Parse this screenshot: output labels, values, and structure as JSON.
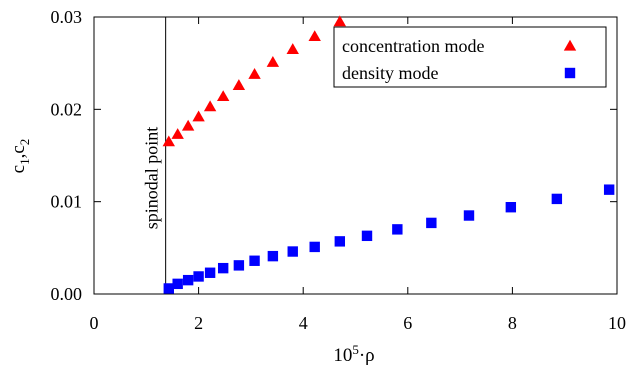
{
  "chart_data": {
    "type": "scatter",
    "xlabel": {
      "base": "10",
      "sup": "5",
      "tail": "·ρ"
    },
    "ylabel": {
      "part1": "c",
      "sub1": "1",
      "comma": ",",
      "part2": "c",
      "sub2": "2"
    },
    "xlim": [
      0,
      10
    ],
    "ylim": [
      0,
      0.03
    ],
    "x_ticks": [
      0,
      2,
      4,
      6,
      8,
      10
    ],
    "x_tick_labels": [
      "0",
      "2",
      "4",
      "6",
      "8",
      "10"
    ],
    "y_ticks": [
      0,
      0.01,
      0.02,
      0.03
    ],
    "y_tick_labels": [
      "0.00",
      "0.01",
      "0.02",
      "0.03"
    ],
    "grid": false,
    "legend_position": "top-right",
    "annotation": {
      "text": "spinodal point",
      "x": 1.37
    },
    "series": [
      {
        "name": "concentration mode",
        "marker": "triangle",
        "color": "#ff0000",
        "points": [
          [
            1.43,
            0.0165
          ],
          [
            1.6,
            0.0173
          ],
          [
            1.8,
            0.0182
          ],
          [
            2.0,
            0.0192
          ],
          [
            2.22,
            0.0203
          ],
          [
            2.47,
            0.0214
          ],
          [
            2.77,
            0.0226
          ],
          [
            3.07,
            0.0238
          ],
          [
            3.42,
            0.0251
          ],
          [
            3.8,
            0.0265
          ],
          [
            4.22,
            0.0279
          ],
          [
            4.7,
            0.0295
          ]
        ]
      },
      {
        "name": "density mode",
        "marker": "square",
        "color": "#0000ff",
        "points": [
          [
            1.43,
            0.0006
          ],
          [
            1.6,
            0.0011
          ],
          [
            1.8,
            0.0015
          ],
          [
            2.0,
            0.0019
          ],
          [
            2.22,
            0.0023
          ],
          [
            2.47,
            0.0028
          ],
          [
            2.77,
            0.0031
          ],
          [
            3.07,
            0.0036
          ],
          [
            3.42,
            0.0041
          ],
          [
            3.8,
            0.0046
          ],
          [
            4.22,
            0.0051
          ],
          [
            4.7,
            0.0057
          ],
          [
            5.22,
            0.0063
          ],
          [
            5.8,
            0.007
          ],
          [
            6.45,
            0.0077
          ],
          [
            7.17,
            0.0085
          ],
          [
            7.97,
            0.0094
          ],
          [
            8.85,
            0.0103
          ],
          [
            9.85,
            0.0113
          ]
        ]
      }
    ]
  }
}
